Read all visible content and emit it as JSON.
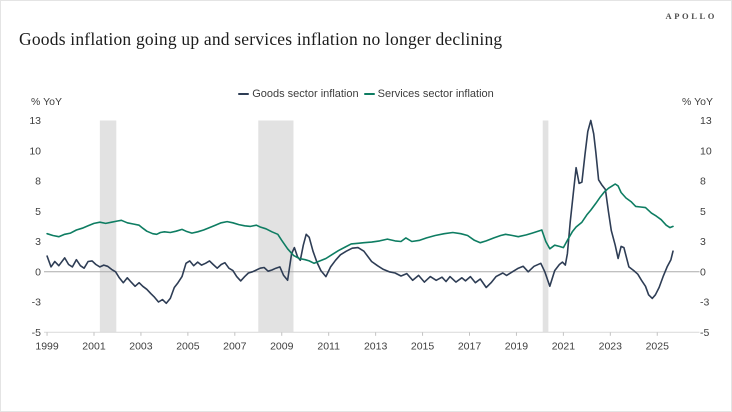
{
  "header": {
    "title": "Goods inflation going up and services inflation no longer declining",
    "logo": "APOLLO"
  },
  "colors": {
    "goods": "#2e3d55",
    "services": "#0e7d62",
    "recession_band": "#e2e2e2",
    "zero_line": "#ababab",
    "axis_line": "#d9d9d9",
    "tick_text": "#3f3f3f"
  },
  "chart_data": {
    "type": "line",
    "title": "Goods inflation going up and services inflation no longer declining",
    "xlabel": "",
    "ylabel_left": "% YoY",
    "ylabel_right": "% YoY",
    "x_range": [
      1998.87,
      2026.8
    ],
    "y_range": [
      -5,
      12.5
    ],
    "grid": false,
    "legend_position": "top-center",
    "y_ticks": [
      {
        "v": -5,
        "label": "-5"
      },
      {
        "v": -2.5,
        "label": "-3"
      },
      {
        "v": 0,
        "label": "0"
      },
      {
        "v": 2.5,
        "label": "3"
      },
      {
        "v": 5,
        "label": "5"
      },
      {
        "v": 7.5,
        "label": "8"
      },
      {
        "v": 10,
        "label": "10"
      },
      {
        "v": 12.5,
        "label": "13"
      }
    ],
    "x_ticks": [
      1999,
      2001,
      2003,
      2005,
      2007,
      2009,
      2011,
      2013,
      2015,
      2017,
      2019,
      2021,
      2023,
      2025
    ],
    "recession_bands": [
      [
        2001.25,
        2001.95
      ],
      [
        2008.0,
        2009.5
      ],
      [
        2020.12,
        2020.36
      ]
    ],
    "series": [
      {
        "name": "Goods sector inflation",
        "color": "#2e3d55",
        "points": [
          [
            1999.0,
            1.3
          ],
          [
            1999.17,
            0.4
          ],
          [
            1999.33,
            0.85
          ],
          [
            1999.5,
            0.5
          ],
          [
            1999.75,
            1.15
          ],
          [
            1999.92,
            0.6
          ],
          [
            2000.08,
            0.4
          ],
          [
            2000.25,
            1.0
          ],
          [
            2000.42,
            0.5
          ],
          [
            2000.58,
            0.3
          ],
          [
            2000.75,
            0.85
          ],
          [
            2000.92,
            0.9
          ],
          [
            2001.08,
            0.6
          ],
          [
            2001.25,
            0.4
          ],
          [
            2001.42,
            0.55
          ],
          [
            2001.58,
            0.45
          ],
          [
            2001.75,
            0.2
          ],
          [
            2001.92,
            0.0
          ],
          [
            2002.08,
            -0.5
          ],
          [
            2002.25,
            -0.9
          ],
          [
            2002.42,
            -0.5
          ],
          [
            2002.58,
            -0.85
          ],
          [
            2002.75,
            -1.2
          ],
          [
            2002.92,
            -0.9
          ],
          [
            2003.08,
            -1.2
          ],
          [
            2003.25,
            -1.45
          ],
          [
            2003.42,
            -1.8
          ],
          [
            2003.58,
            -2.1
          ],
          [
            2003.75,
            -2.5
          ],
          [
            2003.92,
            -2.3
          ],
          [
            2004.08,
            -2.6
          ],
          [
            2004.25,
            -2.2
          ],
          [
            2004.42,
            -1.3
          ],
          [
            2004.58,
            -0.9
          ],
          [
            2004.75,
            -0.4
          ],
          [
            2004.92,
            0.7
          ],
          [
            2005.08,
            0.9
          ],
          [
            2005.25,
            0.5
          ],
          [
            2005.42,
            0.8
          ],
          [
            2005.58,
            0.55
          ],
          [
            2005.75,
            0.7
          ],
          [
            2005.92,
            0.9
          ],
          [
            2006.08,
            0.6
          ],
          [
            2006.25,
            0.3
          ],
          [
            2006.42,
            0.6
          ],
          [
            2006.58,
            0.75
          ],
          [
            2006.75,
            0.3
          ],
          [
            2006.92,
            0.1
          ],
          [
            2007.08,
            -0.4
          ],
          [
            2007.25,
            -0.75
          ],
          [
            2007.42,
            -0.4
          ],
          [
            2007.58,
            -0.1
          ],
          [
            2007.75,
            0.0
          ],
          [
            2007.92,
            0.15
          ],
          [
            2008.08,
            0.3
          ],
          [
            2008.25,
            0.35
          ],
          [
            2008.42,
            0.05
          ],
          [
            2008.58,
            0.15
          ],
          [
            2008.75,
            0.3
          ],
          [
            2008.92,
            0.4
          ],
          [
            2009.08,
            -0.3
          ],
          [
            2009.25,
            -0.7
          ],
          [
            2009.42,
            1.5
          ],
          [
            2009.54,
            2.0
          ],
          [
            2009.67,
            1.25
          ],
          [
            2009.79,
            0.95
          ],
          [
            2009.92,
            2.2
          ],
          [
            2010.04,
            3.1
          ],
          [
            2010.17,
            2.85
          ],
          [
            2010.33,
            1.7
          ],
          [
            2010.5,
            0.8
          ],
          [
            2010.67,
            0.1
          ],
          [
            2010.88,
            -0.4
          ],
          [
            2011.08,
            0.4
          ],
          [
            2011.29,
            0.95
          ],
          [
            2011.5,
            1.4
          ],
          [
            2011.75,
            1.7
          ],
          [
            2012.0,
            1.95
          ],
          [
            2012.25,
            2.0
          ],
          [
            2012.5,
            1.7
          ],
          [
            2012.83,
            0.85
          ],
          [
            2013.08,
            0.5
          ],
          [
            2013.33,
            0.2
          ],
          [
            2013.58,
            0.0
          ],
          [
            2013.83,
            -0.1
          ],
          [
            2014.08,
            -0.35
          ],
          [
            2014.33,
            -0.15
          ],
          [
            2014.58,
            -0.7
          ],
          [
            2014.83,
            -0.3
          ],
          [
            2015.08,
            -0.85
          ],
          [
            2015.33,
            -0.4
          ],
          [
            2015.58,
            -0.7
          ],
          [
            2015.83,
            -0.45
          ],
          [
            2016.0,
            -0.8
          ],
          [
            2016.17,
            -0.4
          ],
          [
            2016.42,
            -0.85
          ],
          [
            2016.67,
            -0.5
          ],
          [
            2016.83,
            -0.75
          ],
          [
            2017.04,
            -0.4
          ],
          [
            2017.25,
            -0.9
          ],
          [
            2017.46,
            -0.6
          ],
          [
            2017.71,
            -1.3
          ],
          [
            2017.92,
            -0.9
          ],
          [
            2018.13,
            -0.4
          ],
          [
            2018.42,
            -0.1
          ],
          [
            2018.58,
            -0.3
          ],
          [
            2018.83,
            0.0
          ],
          [
            2019.08,
            0.3
          ],
          [
            2019.29,
            0.45
          ],
          [
            2019.5,
            0.0
          ],
          [
            2019.75,
            0.45
          ],
          [
            2020.04,
            0.7
          ],
          [
            2020.21,
            0.0
          ],
          [
            2020.42,
            -1.2
          ],
          [
            2020.63,
            0.1
          ],
          [
            2020.83,
            0.6
          ],
          [
            2020.96,
            0.8
          ],
          [
            2021.08,
            0.55
          ],
          [
            2021.17,
            1.5
          ],
          [
            2021.29,
            4.1
          ],
          [
            2021.42,
            6.4
          ],
          [
            2021.54,
            8.6
          ],
          [
            2021.67,
            7.3
          ],
          [
            2021.79,
            7.4
          ],
          [
            2021.92,
            9.7
          ],
          [
            2022.04,
            11.6
          ],
          [
            2022.17,
            12.5
          ],
          [
            2022.29,
            11.4
          ],
          [
            2022.38,
            9.9
          ],
          [
            2022.5,
            7.6
          ],
          [
            2022.63,
            7.2
          ],
          [
            2022.79,
            6.8
          ],
          [
            2022.92,
            5.0
          ],
          [
            2023.04,
            3.4
          ],
          [
            2023.21,
            2.2
          ],
          [
            2023.33,
            1.1
          ],
          [
            2023.46,
            2.1
          ],
          [
            2023.58,
            2.0
          ],
          [
            2023.79,
            0.4
          ],
          [
            2024.0,
            0.1
          ],
          [
            2024.17,
            -0.2
          ],
          [
            2024.33,
            -0.7
          ],
          [
            2024.5,
            -1.2
          ],
          [
            2024.63,
            -1.9
          ],
          [
            2024.79,
            -2.2
          ],
          [
            2024.92,
            -1.9
          ],
          [
            2025.08,
            -1.3
          ],
          [
            2025.25,
            -0.4
          ],
          [
            2025.42,
            0.4
          ],
          [
            2025.58,
            1.0
          ],
          [
            2025.67,
            1.7
          ]
        ]
      },
      {
        "name": "Services sector inflation",
        "color": "#0e7d62",
        "points": [
          [
            1999.0,
            3.15
          ],
          [
            1999.25,
            3.0
          ],
          [
            1999.5,
            2.9
          ],
          [
            1999.75,
            3.1
          ],
          [
            2000.0,
            3.2
          ],
          [
            2000.25,
            3.45
          ],
          [
            2000.5,
            3.6
          ],
          [
            2000.75,
            3.8
          ],
          [
            2001.0,
            4.0
          ],
          [
            2001.25,
            4.1
          ],
          [
            2001.5,
            4.0
          ],
          [
            2001.75,
            4.1
          ],
          [
            2002.0,
            4.2
          ],
          [
            2002.17,
            4.25
          ],
          [
            2002.42,
            4.05
          ],
          [
            2002.67,
            3.95
          ],
          [
            2002.92,
            3.85
          ],
          [
            2003.08,
            3.6
          ],
          [
            2003.25,
            3.35
          ],
          [
            2003.5,
            3.15
          ],
          [
            2003.67,
            3.1
          ],
          [
            2003.83,
            3.25
          ],
          [
            2004.0,
            3.3
          ],
          [
            2004.25,
            3.25
          ],
          [
            2004.5,
            3.35
          ],
          [
            2004.75,
            3.5
          ],
          [
            2004.92,
            3.35
          ],
          [
            2005.17,
            3.2
          ],
          [
            2005.42,
            3.3
          ],
          [
            2005.67,
            3.45
          ],
          [
            2005.92,
            3.65
          ],
          [
            2006.17,
            3.85
          ],
          [
            2006.42,
            4.05
          ],
          [
            2006.67,
            4.15
          ],
          [
            2006.92,
            4.05
          ],
          [
            2007.17,
            3.9
          ],
          [
            2007.42,
            3.8
          ],
          [
            2007.67,
            3.75
          ],
          [
            2007.92,
            3.85
          ],
          [
            2008.08,
            3.7
          ],
          [
            2008.33,
            3.55
          ],
          [
            2008.58,
            3.3
          ],
          [
            2008.83,
            3.1
          ],
          [
            2009.0,
            2.6
          ],
          [
            2009.25,
            1.9
          ],
          [
            2009.5,
            1.35
          ],
          [
            2009.75,
            1.1
          ],
          [
            2010.0,
            1.0
          ],
          [
            2010.17,
            0.9
          ],
          [
            2010.38,
            0.7
          ],
          [
            2010.63,
            0.9
          ],
          [
            2010.88,
            1.1
          ],
          [
            2011.13,
            1.4
          ],
          [
            2011.42,
            1.75
          ],
          [
            2011.71,
            2.05
          ],
          [
            2011.96,
            2.3
          ],
          [
            2012.25,
            2.35
          ],
          [
            2012.5,
            2.4
          ],
          [
            2012.83,
            2.45
          ],
          [
            2013.17,
            2.55
          ],
          [
            2013.5,
            2.7
          ],
          [
            2013.83,
            2.55
          ],
          [
            2014.08,
            2.5
          ],
          [
            2014.29,
            2.8
          ],
          [
            2014.54,
            2.5
          ],
          [
            2014.88,
            2.6
          ],
          [
            2015.17,
            2.8
          ],
          [
            2015.54,
            3.0
          ],
          [
            2015.92,
            3.15
          ],
          [
            2016.29,
            3.25
          ],
          [
            2016.63,
            3.15
          ],
          [
            2016.92,
            3.0
          ],
          [
            2017.21,
            2.6
          ],
          [
            2017.46,
            2.4
          ],
          [
            2017.71,
            2.55
          ],
          [
            2018.04,
            2.8
          ],
          [
            2018.33,
            3.0
          ],
          [
            2018.54,
            3.1
          ],
          [
            2018.83,
            3.0
          ],
          [
            2019.08,
            2.9
          ],
          [
            2019.42,
            3.05
          ],
          [
            2019.67,
            3.2
          ],
          [
            2019.92,
            3.35
          ],
          [
            2020.08,
            3.45
          ],
          [
            2020.25,
            2.5
          ],
          [
            2020.42,
            1.9
          ],
          [
            2020.63,
            2.2
          ],
          [
            2020.83,
            2.1
          ],
          [
            2021.0,
            2.0
          ],
          [
            2021.17,
            2.6
          ],
          [
            2021.38,
            3.3
          ],
          [
            2021.54,
            3.7
          ],
          [
            2021.79,
            4.1
          ],
          [
            2022.0,
            4.7
          ],
          [
            2022.17,
            5.1
          ],
          [
            2022.38,
            5.65
          ],
          [
            2022.58,
            6.2
          ],
          [
            2022.75,
            6.6
          ],
          [
            2022.92,
            6.9
          ],
          [
            2023.08,
            7.1
          ],
          [
            2023.21,
            7.25
          ],
          [
            2023.33,
            7.1
          ],
          [
            2023.46,
            6.55
          ],
          [
            2023.67,
            6.1
          ],
          [
            2023.88,
            5.8
          ],
          [
            2024.08,
            5.4
          ],
          [
            2024.29,
            5.35
          ],
          [
            2024.5,
            5.3
          ],
          [
            2024.75,
            4.85
          ],
          [
            2024.96,
            4.6
          ],
          [
            2025.17,
            4.3
          ],
          [
            2025.38,
            3.85
          ],
          [
            2025.54,
            3.65
          ],
          [
            2025.67,
            3.75
          ]
        ]
      }
    ]
  }
}
